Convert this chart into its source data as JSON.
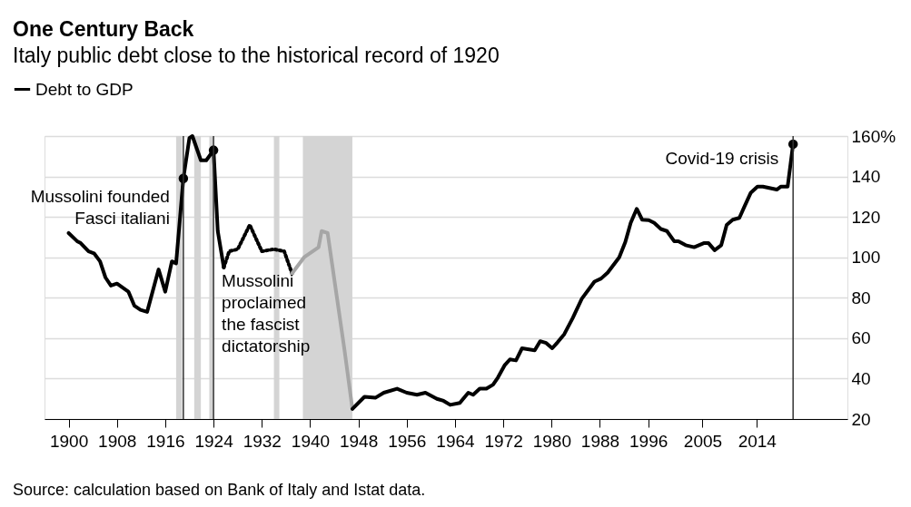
{
  "chart_data": {
    "type": "line",
    "title": "One Century Back",
    "subtitle": "Italy public debt close to the historical record of 1920",
    "series": [
      {
        "name": "Debt to GDP",
        "color": "#000000",
        "line_style": "solid",
        "x": [
          1900,
          1901.4,
          1902,
          1903.3,
          1904.2,
          1905.2,
          1906.1,
          1907,
          1908,
          1909.9,
          1910.9,
          1911.9,
          1913,
          1914.9,
          1916,
          1917.1,
          1917.8,
          1919,
          1920,
          1920.5,
          1921.9,
          1922.8,
          1924,
          1924.7,
          1925.7
        ],
        "values": [
          112,
          108,
          107,
          103,
          102,
          98,
          90,
          86,
          87,
          83,
          76,
          74,
          73,
          94,
          83,
          98,
          97,
          139,
          159,
          160,
          148,
          148,
          153,
          113,
          95
        ]
      },
      {
        "color": "#000000",
        "line_style": "dotted",
        "x": [
          1925.7,
          1926.6,
          1928,
          1930,
          1932,
          1934,
          1935.7,
          1937
        ],
        "values": [
          95,
          103,
          104,
          116,
          103,
          104,
          103,
          92
        ]
      },
      {
        "color": "#a6a6a6",
        "line_style": "solid",
        "x": [
          1937,
          1939,
          1941.4,
          1941.9,
          1942.9,
          1944.3,
          1945.7,
          1947
        ],
        "values": [
          92,
          100,
          105,
          113,
          112,
          83,
          54,
          25
        ]
      },
      {
        "color": "#000000",
        "line_style": "solid",
        "x": [
          1947,
          1949,
          1950.8,
          1952.2,
          1954.4,
          1956,
          1957.7,
          1959.1,
          1961,
          1962.1,
          1963.2,
          1964.8,
          1966.2,
          1967,
          1968.1,
          1969.2,
          1970.3,
          1971.1,
          1972.2,
          1973.1,
          1974.1,
          1975.1,
          1977.2,
          1978.1,
          1979.1,
          1980.1,
          1981,
          1982.1,
          1983.5,
          1985,
          1987.1,
          1988.2,
          1989.3,
          1991.2,
          1992.2,
          1993.1,
          1994.1,
          1995,
          1996.1,
          1997,
          1998.1,
          1999.1,
          2000.3,
          2001,
          2002.2,
          2003.6,
          2005.2,
          2006,
          2007,
          2008.1,
          2009,
          2010,
          2011.1,
          2012,
          2013,
          2014.1,
          2015,
          2017.3,
          2018,
          2019.1,
          2020
        ],
        "values": [
          25,
          31,
          30.5,
          33,
          35,
          33,
          32,
          33,
          30,
          29,
          27,
          28,
          33,
          32,
          35,
          35,
          37,
          40.5,
          46.5,
          49.5,
          49,
          55,
          54,
          58.5,
          57.6,
          55,
          58,
          62,
          70,
          79.5,
          88,
          89.5,
          92.5,
          100,
          107.5,
          117,
          124,
          118.6,
          118.4,
          117,
          114,
          113,
          108,
          108,
          106,
          105,
          107,
          107,
          103.5,
          106,
          116,
          118.6,
          119.5,
          125.5,
          132,
          135,
          135,
          133.5,
          135,
          135,
          156
        ]
      },
      {
        "type": "scatter",
        "color": "#000000",
        "marker": "circle",
        "x": [
          1919,
          1924,
          2020
        ],
        "values": [
          139,
          153,
          156
        ]
      }
    ],
    "xlim": [
      1896,
      2029
    ],
    "xticks": [
      1900,
      1908,
      1916,
      1924,
      1932,
      1940,
      1948,
      1956,
      1964,
      1972,
      1980,
      1988,
      1996,
      2005,
      2014
    ],
    "ylim": [
      20,
      160
    ],
    "yticks": [
      20,
      40,
      60,
      80,
      100,
      120,
      140,
      {
        "value": 160,
        "label": "160%"
      }
    ],
    "grid": "y",
    "legend": "top left",
    "marker": "none",
    "bands": [
      {
        "axis": "x",
        "from": 1917.8,
        "to": 1918.8,
        "color": "#d4d4d4"
      },
      {
        "axis": "x",
        "from": 1920.8,
        "to": 1921.9,
        "color": "#d4d4d4"
      },
      {
        "axis": "x",
        "from": 1923.3,
        "to": 1924,
        "color": "#d4d4d4"
      },
      {
        "axis": "x",
        "from": 1934,
        "to": 1934.9,
        "color": "#d4d4d4"
      },
      {
        "axis": "x",
        "from": 1938.8,
        "to": 1947,
        "color": "#d4d4d4"
      }
    ],
    "ref_lines": [
      {
        "axis": "x",
        "value": 1919,
        "color": "#333333"
      },
      {
        "axis": "x",
        "value": 1924,
        "color": "#333333"
      },
      {
        "axis": "x",
        "value": 2020,
        "color": "#333333"
      }
    ],
    "annotations": [
      {
        "text": "Mussolini founded Fasci italiani",
        "x": 1919,
        "y": 139
      },
      {
        "text": "Mussolini proclaimed the fascist dictatorship",
        "x": 1924,
        "y": 88
      },
      {
        "text": "Covid-19 crisis",
        "x": 2020,
        "y": 156
      },
      "Source: calculation based on Bank of Italy and Istat data."
    ]
  }
}
